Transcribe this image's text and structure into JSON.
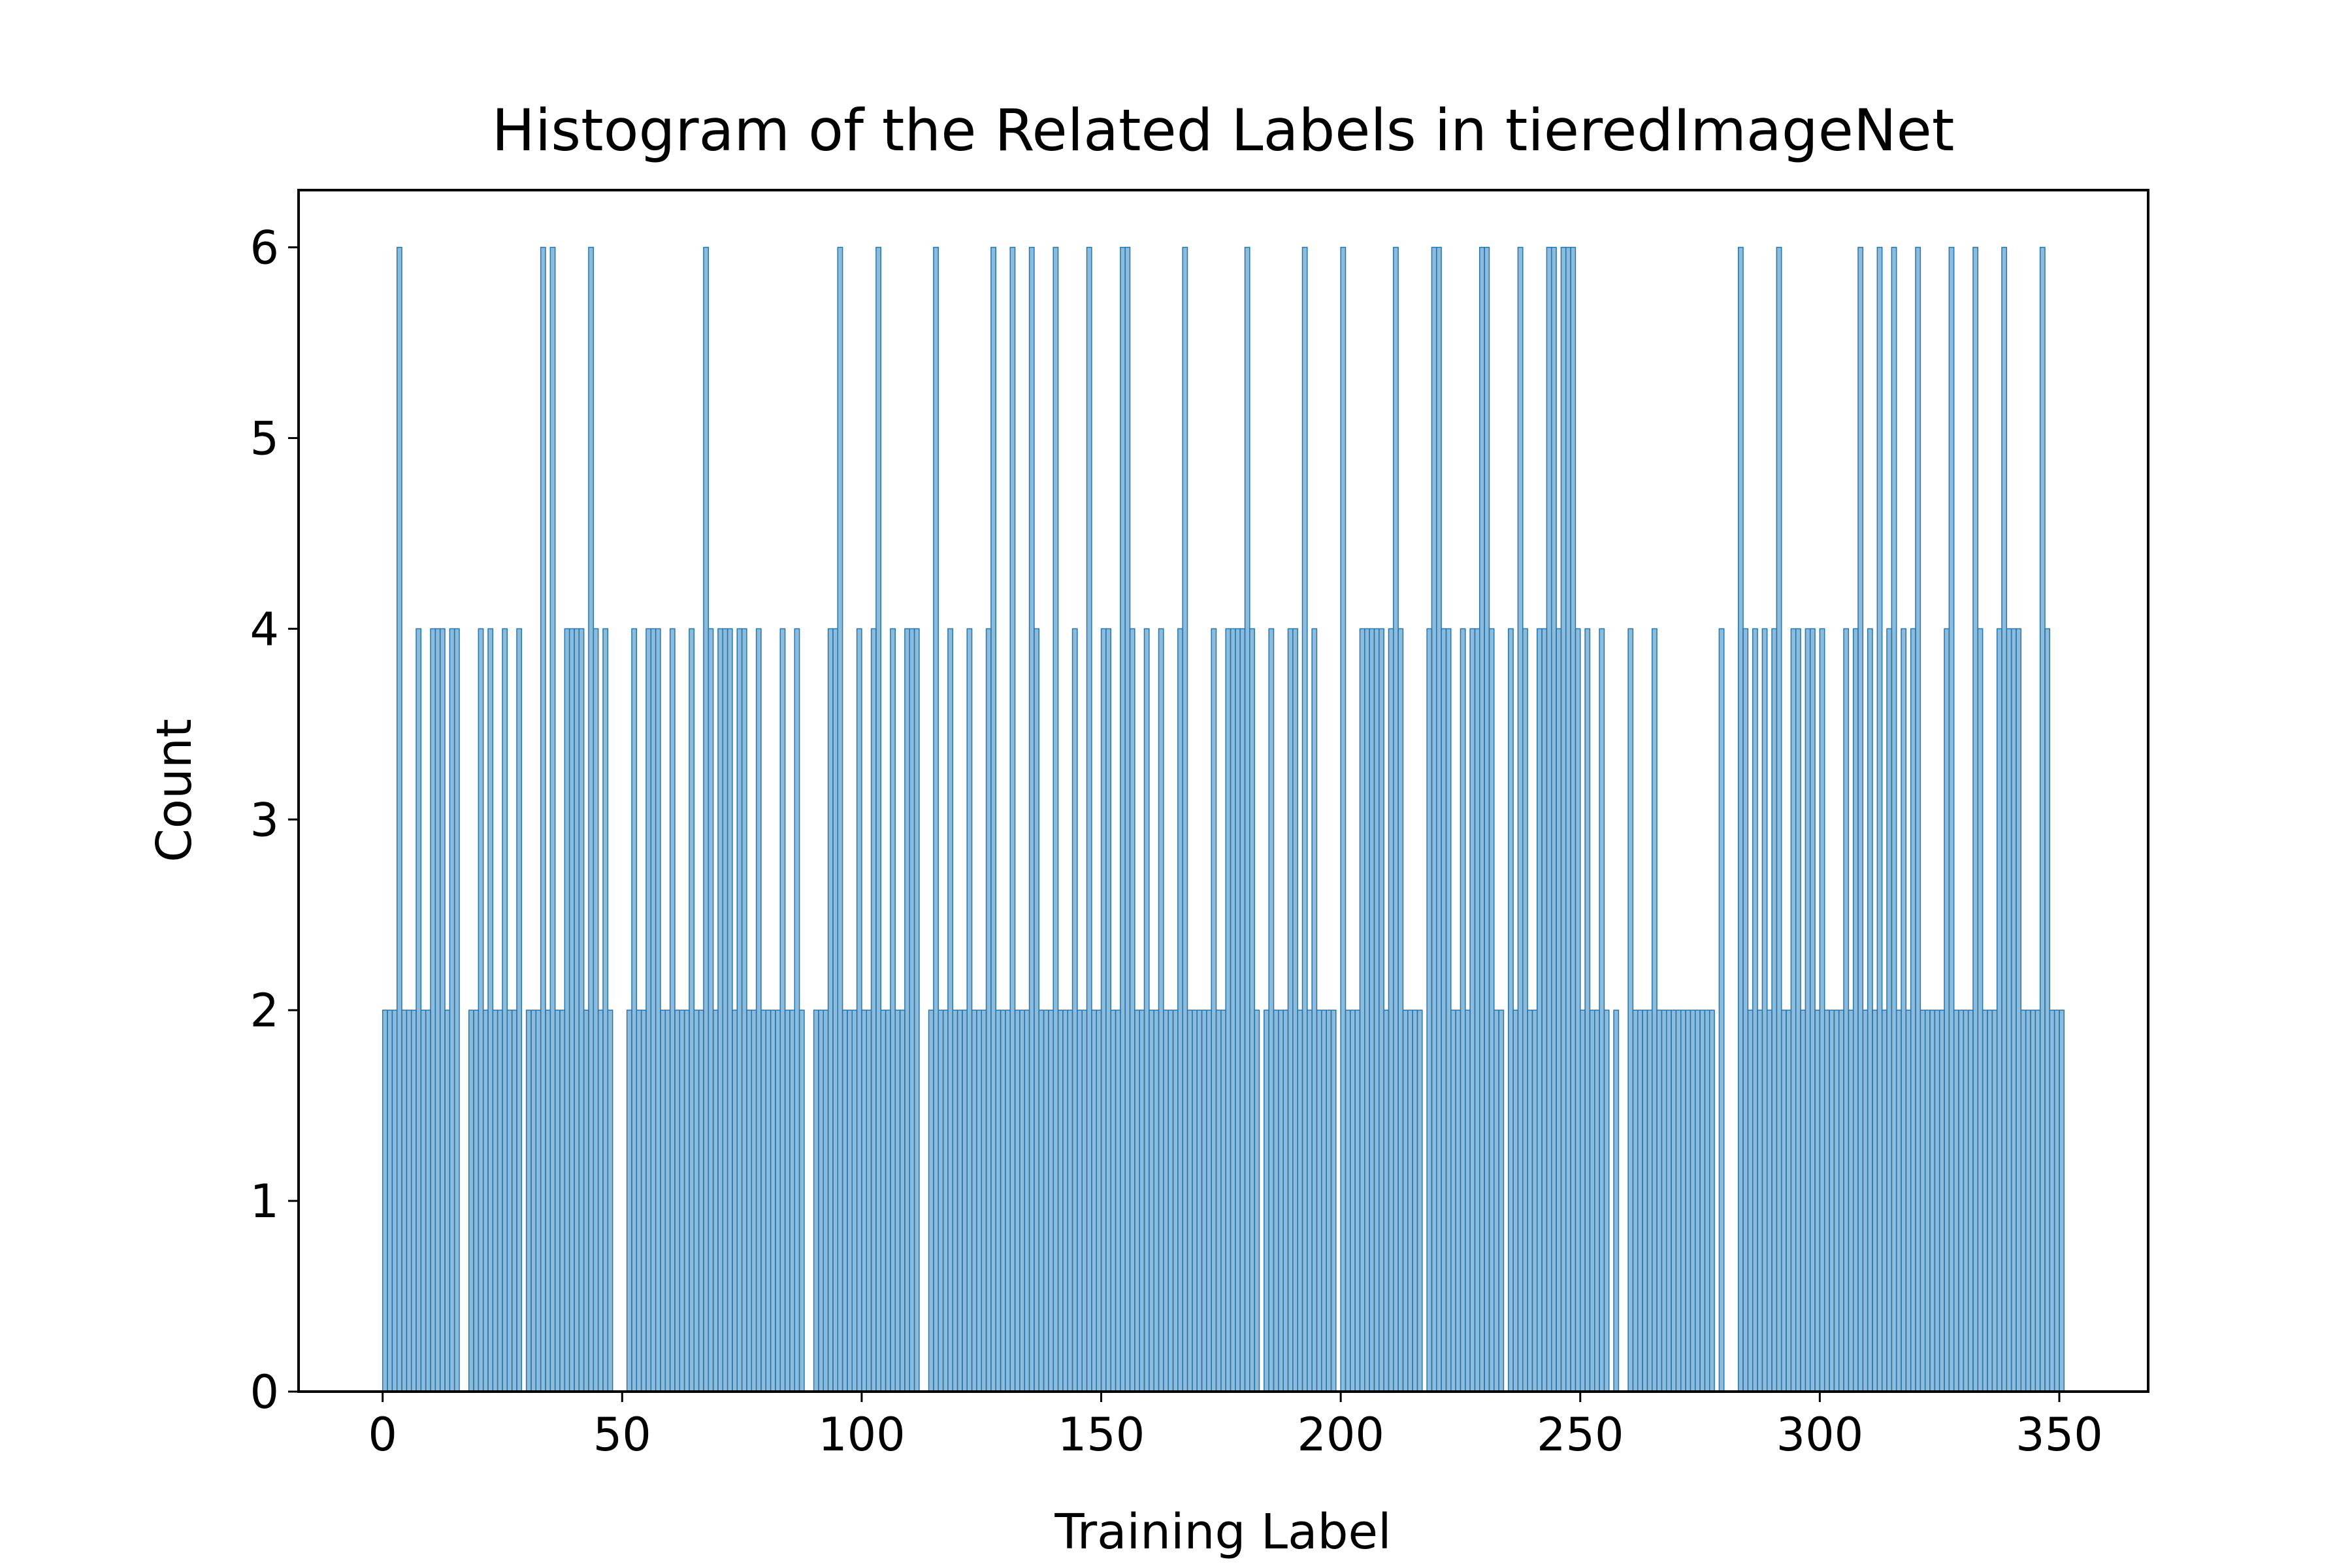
{
  "chart_data": {
    "type": "histogram",
    "title": "Histogram of the Related Labels in tieredImageNet",
    "xlabel": "Training Label",
    "ylabel": "Count",
    "color": "#1f77b4",
    "xlim": [
      -17.55,
      368.55
    ],
    "ylim": [
      0,
      6.3
    ],
    "xticks": [
      0,
      50,
      100,
      150,
      200,
      250,
      300,
      350
    ],
    "yticks": [
      0,
      1,
      2,
      3,
      4,
      5,
      6
    ],
    "bins": [
      0,
      1,
      2,
      3,
      4,
      5,
      6,
      7,
      8,
      9,
      10,
      11,
      12,
      13,
      14,
      15,
      16,
      17,
      18,
      19,
      20,
      21,
      22,
      23,
      24,
      25,
      26,
      27,
      28,
      29,
      30,
      31,
      32,
      33,
      34,
      35,
      36,
      37,
      38,
      39,
      40,
      41,
      42,
      43,
      44,
      45,
      46,
      47,
      48,
      49,
      50,
      51,
      52,
      53,
      54,
      55,
      56,
      57,
      58,
      59,
      60,
      61,
      62,
      63,
      64,
      65,
      66,
      67,
      68,
      69,
      70,
      71,
      72,
      73,
      74,
      75,
      76,
      77,
      78,
      79,
      80,
      81,
      82,
      83,
      84,
      85,
      86,
      87,
      88,
      89,
      90,
      91,
      92,
      93,
      94,
      95,
      96,
      97,
      98,
      99,
      100,
      101,
      102,
      103,
      104,
      105,
      106,
      107,
      108,
      109,
      110,
      111,
      112,
      113,
      114,
      115,
      116,
      117,
      118,
      119,
      120,
      121,
      122,
      123,
      124,
      125,
      126,
      127,
      128,
      129,
      130,
      131,
      132,
      133,
      134,
      135,
      136,
      137,
      138,
      139,
      140,
      141,
      142,
      143,
      144,
      145,
      146,
      147,
      148,
      149,
      150,
      151,
      152,
      153,
      154,
      155,
      156,
      157,
      158,
      159,
      160,
      161,
      162,
      163,
      164,
      165,
      166,
      167,
      168,
      169,
      170,
      171,
      172,
      173,
      174,
      175,
      176,
      177,
      178,
      179,
      180,
      181,
      182,
      183,
      184,
      185,
      186,
      187,
      188,
      189,
      190,
      191,
      192,
      193,
      194,
      195,
      196,
      197,
      198,
      199,
      200,
      201,
      202,
      203,
      204,
      205,
      206,
      207,
      208,
      209,
      210,
      211,
      212,
      213,
      214,
      215,
      216,
      217,
      218,
      219,
      220,
      221,
      222,
      223,
      224,
      225,
      226,
      227,
      228,
      229,
      230,
      231,
      232,
      233,
      234,
      235,
      236,
      237,
      238,
      239,
      240,
      241,
      242,
      243,
      244,
      245,
      246,
      247,
      248,
      249,
      250,
      251,
      252,
      253,
      254,
      255,
      256,
      257,
      258,
      259,
      260,
      261,
      262,
      263,
      264,
      265,
      266,
      267,
      268,
      269,
      270,
      271,
      272,
      273,
      274,
      275,
      276,
      277,
      278,
      279,
      280,
      281,
      282,
      283,
      284,
      285,
      286,
      287,
      288,
      289,
      290,
      291,
      292,
      293,
      294,
      295,
      296,
      297,
      298,
      299,
      300,
      301,
      302,
      303,
      304,
      305,
      306,
      307,
      308,
      309,
      310,
      311,
      312,
      313,
      314,
      315,
      316,
      317,
      318,
      319,
      320,
      321,
      322,
      323,
      324,
      325,
      326,
      327,
      328,
      329,
      330,
      331,
      332,
      333,
      334,
      335,
      336,
      337,
      338,
      339,
      340,
      341,
      342,
      343,
      344,
      345,
      346,
      347,
      348,
      349,
      350,
      351
    ],
    "values": [
      2,
      2,
      2,
      6,
      2,
      2,
      2,
      4,
      2,
      2,
      4,
      4,
      4,
      2,
      4,
      4,
      0,
      0,
      2,
      2,
      4,
      2,
      4,
      2,
      2,
      4,
      2,
      2,
      4,
      0,
      2,
      2,
      2,
      6,
      2,
      6,
      2,
      2,
      4,
      4,
      4,
      4,
      2,
      6,
      4,
      2,
      4,
      2,
      0,
      0,
      0,
      2,
      4,
      2,
      2,
      4,
      4,
      4,
      2,
      2,
      4,
      2,
      2,
      2,
      4,
      2,
      2,
      6,
      4,
      2,
      4,
      4,
      4,
      2,
      4,
      4,
      2,
      2,
      4,
      2,
      2,
      2,
      2,
      4,
      2,
      2,
      4,
      2,
      0,
      0,
      2,
      2,
      2,
      4,
      4,
      6,
      2,
      2,
      2,
      4,
      2,
      2,
      4,
      6,
      2,
      2,
      4,
      2,
      2,
      4,
      4,
      4,
      0,
      0,
      2,
      6,
      2,
      2,
      4,
      2,
      2,
      2,
      4,
      2,
      2,
      2,
      4,
      6,
      2,
      2,
      2,
      6,
      2,
      2,
      2,
      6,
      4,
      2,
      2,
      2,
      6,
      2,
      2,
      2,
      4,
      2,
      2,
      6,
      2,
      2,
      4,
      4,
      2,
      2,
      6,
      6,
      4,
      2,
      2,
      4,
      2,
      2,
      4,
      2,
      2,
      2,
      4,
      6,
      2,
      2,
      2,
      2,
      2,
      4,
      2,
      2,
      4,
      4,
      4,
      4,
      6,
      4,
      2,
      0,
      2,
      4,
      2,
      2,
      2,
      4,
      4,
      2,
      6,
      2,
      4,
      2,
      2,
      2,
      2,
      0,
      6,
      2,
      2,
      2,
      4,
      4,
      4,
      4,
      4,
      2,
      4,
      6,
      4,
      2,
      2,
      2,
      2,
      0,
      4,
      6,
      6,
      4,
      4,
      2,
      2,
      4,
      2,
      4,
      4,
      6,
      6,
      4,
      2,
      2,
      0,
      4,
      2,
      6,
      4,
      2,
      2,
      4,
      4,
      6,
      6,
      4,
      6,
      6,
      6,
      4,
      2,
      4,
      2,
      2,
      4,
      2,
      0,
      2,
      0,
      0,
      4,
      2,
      2,
      2,
      2,
      4,
      2,
      2,
      2,
      2,
      2,
      2,
      2,
      2,
      2,
      2,
      2,
      2,
      0,
      4,
      0,
      0,
      0,
      6,
      4,
      2,
      4,
      2,
      4,
      2,
      4,
      6,
      2,
      2,
      4,
      4,
      2,
      4,
      4,
      2,
      4,
      2,
      2,
      2,
      2,
      4,
      2,
      4,
      6,
      2,
      4,
      2,
      6,
      2,
      4,
      6,
      2,
      4,
      2,
      4,
      6,
      2,
      2,
      2,
      2,
      2,
      4,
      6,
      2,
      2,
      2,
      2,
      6,
      4,
      2,
      2,
      2,
      4,
      6,
      4,
      4,
      4,
      2,
      2,
      2,
      2,
      6,
      4,
      2,
      2,
      2
    ]
  }
}
